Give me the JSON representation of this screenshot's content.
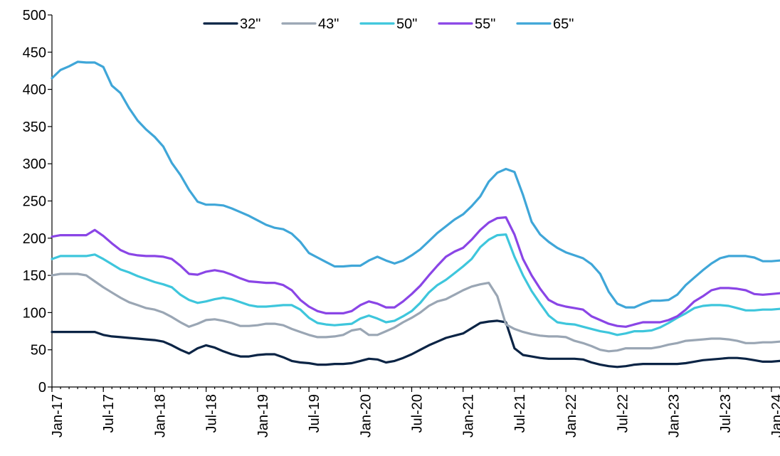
{
  "chart_data": {
    "type": "line",
    "title": "",
    "xlabel": "",
    "ylabel": "",
    "ylim": [
      0,
      500
    ],
    "yticks": [
      "0",
      "50",
      "100",
      "150",
      "200",
      "250",
      "300",
      "350",
      "400",
      "450",
      "500"
    ],
    "xlim": [
      "2017-01",
      "2024-02"
    ],
    "xticks": [
      {
        "date": "2017-01",
        "label": "Jan-17"
      },
      {
        "date": "2017-07",
        "label": "Jul-17"
      },
      {
        "date": "2018-01",
        "label": "Jan-18"
      },
      {
        "date": "2018-07",
        "label": "Jul-18"
      },
      {
        "date": "2019-01",
        "label": "Jan-19"
      },
      {
        "date": "2019-07",
        "label": "Jul-19"
      },
      {
        "date": "2020-01",
        "label": "Jan-20"
      },
      {
        "date": "2020-07",
        "label": "Jul-20"
      },
      {
        "date": "2021-01",
        "label": "Jan-21"
      },
      {
        "date": "2021-07",
        "label": "Jul-21"
      },
      {
        "date": "2022-01",
        "label": "Jan-22"
      },
      {
        "date": "2022-07",
        "label": "Jul-22"
      },
      {
        "date": "2023-01",
        "label": "Jan-23"
      },
      {
        "date": "2023-07",
        "label": "Jul-23"
      },
      {
        "date": "2024-01",
        "label": "Jan-24"
      }
    ],
    "grid": false,
    "legend_position": "top-center",
    "x": [
      "2017-01",
      "2017-02",
      "2017-03",
      "2017-04",
      "2017-05",
      "2017-06",
      "2017-07",
      "2017-08",
      "2017-09",
      "2017-10",
      "2017-11",
      "2017-12",
      "2018-01",
      "2018-02",
      "2018-03",
      "2018-04",
      "2018-05",
      "2018-06",
      "2018-07",
      "2018-08",
      "2018-09",
      "2018-10",
      "2018-11",
      "2018-12",
      "2019-01",
      "2019-02",
      "2019-03",
      "2019-04",
      "2019-05",
      "2019-06",
      "2019-07",
      "2019-08",
      "2019-09",
      "2019-10",
      "2019-11",
      "2019-12",
      "2020-01",
      "2020-02",
      "2020-03",
      "2020-04",
      "2020-05",
      "2020-06",
      "2020-07",
      "2020-08",
      "2020-09",
      "2020-10",
      "2020-11",
      "2020-12",
      "2021-01",
      "2021-02",
      "2021-03",
      "2021-04",
      "2021-05",
      "2021-06",
      "2021-07",
      "2021-08",
      "2021-09",
      "2021-10",
      "2021-11",
      "2021-12",
      "2022-01",
      "2022-02",
      "2022-03",
      "2022-04",
      "2022-05",
      "2022-06",
      "2022-07",
      "2022-08",
      "2022-09",
      "2022-10",
      "2022-11",
      "2022-12",
      "2023-01",
      "2023-02",
      "2023-03",
      "2023-04",
      "2023-05",
      "2023-06",
      "2023-07",
      "2023-08",
      "2023-09",
      "2023-10",
      "2023-11",
      "2023-12",
      "2024-01",
      "2024-02"
    ],
    "series": [
      {
        "name": "32\"",
        "color": "#0b2445",
        "values": [
          74,
          74,
          74,
          74,
          74,
          74,
          70,
          68,
          67,
          66,
          65,
          64,
          63,
          61,
          56,
          50,
          45,
          52,
          56,
          53,
          48,
          44,
          41,
          41,
          43,
          44,
          44,
          40,
          35,
          33,
          32,
          30,
          30,
          31,
          31,
          32,
          35,
          38,
          37,
          33,
          35,
          39,
          44,
          50,
          56,
          61,
          66,
          69,
          72,
          79,
          86,
          88,
          89,
          87,
          52,
          43,
          41,
          39,
          38,
          38,
          38,
          38,
          37,
          33,
          30,
          28,
          27,
          28,
          30,
          31,
          31,
          31,
          31,
          31,
          32,
          34,
          36,
          37,
          38,
          39,
          39,
          38,
          36,
          34,
          34,
          35
        ]
      },
      {
        "name": "43\"",
        "color": "#9aa6b4",
        "values": [
          150,
          152,
          152,
          152,
          150,
          142,
          134,
          127,
          120,
          114,
          110,
          106,
          104,
          100,
          94,
          87,
          81,
          85,
          90,
          91,
          89,
          86,
          82,
          82,
          83,
          85,
          85,
          83,
          78,
          74,
          70,
          67,
          67,
          68,
          70,
          76,
          78,
          70,
          70,
          75,
          80,
          87,
          93,
          100,
          109,
          115,
          118,
          124,
          130,
          135,
          138,
          140,
          122,
          84,
          78,
          74,
          71,
          69,
          68,
          68,
          67,
          62,
          59,
          55,
          50,
          48,
          49,
          52,
          52,
          52,
          52,
          54,
          57,
          59,
          62,
          63,
          64,
          65,
          65,
          64,
          62,
          59,
          59,
          60,
          60,
          61
        ]
      },
      {
        "name": "50\"",
        "color": "#3ec6dc",
        "values": [
          172,
          176,
          176,
          176,
          176,
          178,
          172,
          165,
          158,
          154,
          149,
          145,
          141,
          138,
          134,
          124,
          117,
          113,
          115,
          118,
          120,
          118,
          114,
          110,
          108,
          108,
          109,
          110,
          110,
          104,
          93,
          86,
          84,
          83,
          84,
          85,
          92,
          96,
          92,
          87,
          89,
          95,
          102,
          113,
          127,
          137,
          144,
          153,
          162,
          172,
          188,
          198,
          204,
          205,
          175,
          150,
          129,
          112,
          96,
          87,
          85,
          84,
          81,
          78,
          75,
          73,
          70,
          72,
          75,
          75,
          76,
          80,
          86,
          93,
          99,
          106,
          109,
          110,
          110,
          109,
          106,
          103,
          103,
          104,
          104,
          105
        ]
      },
      {
        "name": "55\"",
        "color": "#8a45e6",
        "values": [
          202,
          204,
          204,
          204,
          204,
          211,
          203,
          193,
          184,
          179,
          177,
          176,
          176,
          175,
          172,
          163,
          152,
          151,
          155,
          157,
          155,
          151,
          146,
          142,
          141,
          140,
          140,
          137,
          130,
          117,
          108,
          102,
          99,
          99,
          99,
          102,
          110,
          115,
          112,
          107,
          107,
          115,
          125,
          136,
          150,
          163,
          175,
          182,
          187,
          198,
          211,
          221,
          227,
          228,
          205,
          172,
          150,
          132,
          117,
          111,
          108,
          106,
          104,
          95,
          90,
          85,
          82,
          81,
          84,
          87,
          87,
          87,
          90,
          95,
          104,
          115,
          122,
          130,
          133,
          133,
          132,
          130,
          125,
          124,
          125,
          126
        ]
      },
      {
        "name": "65\"",
        "color": "#3fa6d8",
        "values": [
          415,
          426,
          431,
          437,
          436,
          436,
          430,
          405,
          395,
          375,
          358,
          346,
          336,
          323,
          301,
          285,
          265,
          249,
          245,
          245,
          244,
          240,
          235,
          230,
          224,
          218,
          214,
          212,
          206,
          195,
          180,
          174,
          168,
          162,
          162,
          163,
          163,
          170,
          175,
          170,
          166,
          170,
          177,
          185,
          196,
          207,
          216,
          225,
          232,
          243,
          256,
          276,
          288,
          293,
          289,
          258,
          222,
          205,
          195,
          187,
          181,
          177,
          173,
          165,
          152,
          128,
          112,
          107,
          107,
          112,
          116,
          116,
          117,
          124,
          137,
          147,
          157,
          166,
          173,
          176,
          176,
          176,
          174,
          169,
          169,
          170
        ]
      }
    ]
  }
}
